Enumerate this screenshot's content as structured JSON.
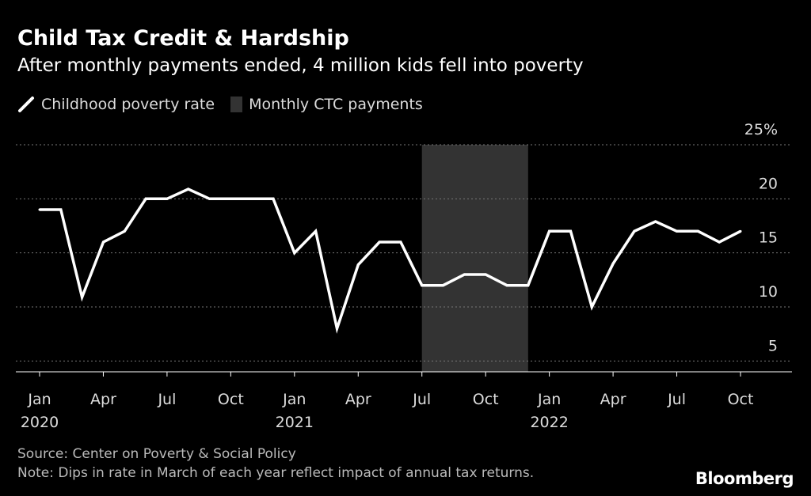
{
  "title": "Child Tax Credit & Hardship",
  "subtitle": "After monthly payments ended, 4 million kids fell into poverty",
  "legend": {
    "line_label": "Childhood poverty rate",
    "band_label": "Monthly CTC payments"
  },
  "source": "Source: Center on Poverty & Social Policy",
  "note": "Note: Dips in rate in March of each year reflect impact of annual tax returns.",
  "brand": "Bloomberg",
  "colors": {
    "background": "#000000",
    "line": "#ffffff",
    "band": "#333333",
    "grid": "#777777",
    "axis_text": "#dddddd"
  },
  "chart_data": {
    "type": "line",
    "x": [
      "2020-01",
      "2020-02",
      "2020-03",
      "2020-04",
      "2020-05",
      "2020-06",
      "2020-07",
      "2020-08",
      "2020-09",
      "2020-10",
      "2020-11",
      "2020-12",
      "2021-01",
      "2021-02",
      "2021-03",
      "2021-04",
      "2021-05",
      "2021-06",
      "2021-07",
      "2021-08",
      "2021-09",
      "2021-10",
      "2021-11",
      "2021-12",
      "2022-01",
      "2022-02",
      "2022-03",
      "2022-04",
      "2022-05",
      "2022-06",
      "2022-07",
      "2022-08",
      "2022-09",
      "2022-10"
    ],
    "series": [
      {
        "name": "Childhood poverty rate",
        "values": [
          19.0,
          19.0,
          10.9,
          16.0,
          17.0,
          20.0,
          20.0,
          20.9,
          20.0,
          20.0,
          20.0,
          20.0,
          15.0,
          17.0,
          8.0,
          13.9,
          16.0,
          16.0,
          12.0,
          12.0,
          13.0,
          13.0,
          12.0,
          12.0,
          17.0,
          17.0,
          10.0,
          14.0,
          17.0,
          17.9,
          17.0,
          17.0,
          16.0,
          17.0
        ]
      }
    ],
    "band": {
      "label": "Monthly CTC payments",
      "start": "2021-07",
      "end": "2021-12"
    },
    "ylim": [
      4,
      25
    ],
    "yticks": [
      {
        "value": 5,
        "label": "5"
      },
      {
        "value": 10,
        "label": "10"
      },
      {
        "value": 15,
        "label": "15"
      },
      {
        "value": 20,
        "label": "20"
      },
      {
        "value": 25,
        "label": "25%"
      }
    ],
    "xticks": [
      {
        "month_index": 0,
        "label": "Jan",
        "year": "2020"
      },
      {
        "month_index": 3,
        "label": "Apr",
        "year": ""
      },
      {
        "month_index": 6,
        "label": "Jul",
        "year": ""
      },
      {
        "month_index": 9,
        "label": "Oct",
        "year": ""
      },
      {
        "month_index": 12,
        "label": "Jan",
        "year": "2021"
      },
      {
        "month_index": 15,
        "label": "Apr",
        "year": ""
      },
      {
        "month_index": 18,
        "label": "Jul",
        "year": ""
      },
      {
        "month_index": 21,
        "label": "Oct",
        "year": ""
      },
      {
        "month_index": 24,
        "label": "Jan",
        "year": "2022"
      },
      {
        "month_index": 27,
        "label": "Apr",
        "year": ""
      },
      {
        "month_index": 30,
        "label": "Jul",
        "year": ""
      },
      {
        "month_index": 33,
        "label": "Oct",
        "year": ""
      }
    ],
    "grid": true,
    "legend_position": "top-left",
    "yaxis_position": "right"
  }
}
